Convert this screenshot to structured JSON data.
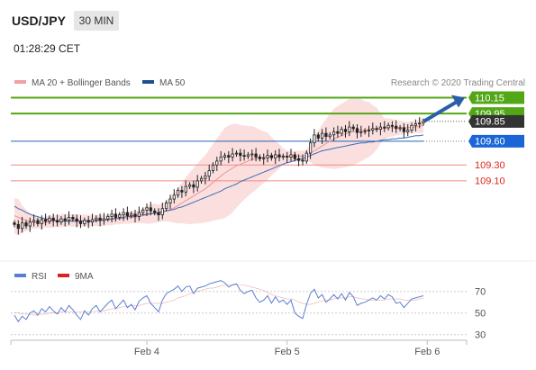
{
  "header": {
    "symbol": "USD/JPY",
    "timeframe": "30 MIN",
    "time": "01:28:29 CET"
  },
  "legend": {
    "ma20_label": "MA 20 + Bollinger Bands",
    "ma50_label": "MA 50",
    "credit": "Research © 2020 Trading Central"
  },
  "rsi_legend": {
    "rsi_label": "RSI",
    "ma_label": "9MA"
  },
  "colors": {
    "green": "#52a716",
    "blue": "#1f63b5",
    "red": "#e8423c",
    "dark": "#333333",
    "band": "#f7c4c4",
    "ma50": "#3d6fb5",
    "rsi": "#5b7fd0",
    "arrow": "#2a5ea8"
  },
  "chart_data": {
    "type": "candlestick",
    "x_ticks": [
      {
        "label": "Feb 4",
        "i": 34
      },
      {
        "label": "Feb 5",
        "i": 70
      },
      {
        "label": "Feb 6",
        "i": 106
      }
    ],
    "price_levels": [
      {
        "value": 110.15,
        "label": "110.15",
        "style": "resistance"
      },
      {
        "value": 109.95,
        "label": "109.95",
        "style": "resistance"
      },
      {
        "value": 109.85,
        "label": "109.85",
        "style": "last"
      },
      {
        "value": 109.6,
        "label": "109.60",
        "style": "pivot"
      },
      {
        "value": 109.3,
        "label": "109.30",
        "style": "support"
      },
      {
        "value": 109.1,
        "label": "109.10",
        "style": "support"
      }
    ],
    "price_range": [
      108.3,
      110.2
    ],
    "rsi_levels": [
      70,
      50,
      30
    ],
    "rsi_range": [
      20,
      80
    ],
    "close": [
      108.55,
      108.5,
      108.57,
      108.53,
      108.58,
      108.6,
      108.56,
      108.61,
      108.59,
      108.63,
      108.6,
      108.58,
      108.62,
      108.6,
      108.64,
      108.62,
      108.59,
      108.56,
      108.6,
      108.58,
      108.61,
      108.63,
      108.6,
      108.62,
      108.65,
      108.68,
      108.64,
      108.67,
      108.7,
      108.66,
      108.68,
      108.65,
      108.7,
      108.73,
      108.76,
      108.72,
      108.7,
      108.67,
      108.75,
      108.82,
      108.87,
      108.92,
      108.98,
      108.96,
      109.03,
      109.05,
      109.02,
      109.1,
      109.13,
      109.16,
      109.23,
      109.3,
      109.35,
      109.4,
      109.42,
      109.4,
      109.44,
      109.45,
      109.42,
      109.41,
      109.43,
      109.44,
      109.4,
      109.38,
      109.39,
      109.42,
      109.39,
      109.43,
      109.4,
      109.41,
      109.4,
      109.43,
      109.38,
      109.36,
      109.35,
      109.45,
      109.58,
      109.68,
      109.64,
      109.7,
      109.66,
      109.68,
      109.72,
      109.7,
      109.75,
      109.72,
      109.78,
      109.76,
      109.71,
      109.72,
      109.73,
      109.74,
      109.76,
      109.75,
      109.78,
      109.77,
      109.8,
      109.79,
      109.76,
      109.77,
      109.72,
      109.74,
      109.8,
      109.82,
      109.83,
      109.85
    ],
    "ma20": [
      108.66,
      108.64,
      108.62,
      108.6,
      108.59,
      108.58,
      108.57,
      108.57,
      108.58,
      108.58,
      108.59,
      108.59,
      108.6,
      108.6,
      108.6,
      108.6,
      108.6,
      108.6,
      108.6,
      108.6,
      108.6,
      108.6,
      108.6,
      108.6,
      108.61,
      108.61,
      108.62,
      108.62,
      108.63,
      108.63,
      108.64,
      108.64,
      108.65,
      108.66,
      108.67,
      108.68,
      108.69,
      108.69,
      108.7,
      108.72,
      108.74,
      108.76,
      108.79,
      108.82,
      108.85,
      108.88,
      108.91,
      108.94,
      108.97,
      109.0,
      109.04,
      109.08,
      109.12,
      109.16,
      109.2,
      109.23,
      109.26,
      109.29,
      109.31,
      109.33,
      109.35,
      109.37,
      109.38,
      109.39,
      109.4,
      109.41,
      109.41,
      109.41,
      109.41,
      109.41,
      109.41,
      109.41,
      109.41,
      109.41,
      109.41,
      109.42,
      109.45,
      109.48,
      109.51,
      109.54,
      109.57,
      109.6,
      109.63,
      109.65,
      109.67,
      109.69,
      109.71,
      109.72,
      109.73,
      109.74,
      109.74,
      109.75,
      109.75,
      109.76,
      109.76,
      109.76,
      109.77,
      109.77,
      109.77,
      109.77,
      109.77,
      109.77,
      109.78,
      109.78,
      109.79,
      109.8
    ],
    "ma50": [
      108.78,
      108.75,
      108.73,
      108.7,
      108.68,
      108.66,
      108.65,
      108.63,
      108.62,
      108.61,
      108.6,
      108.6,
      108.59,
      108.59,
      108.59,
      108.59,
      108.59,
      108.59,
      108.59,
      108.59,
      108.59,
      108.6,
      108.6,
      108.61,
      108.61,
      108.62,
      108.63,
      108.63,
      108.64,
      108.65,
      108.65,
      108.66,
      108.67,
      108.67,
      108.68,
      108.69,
      108.69,
      108.7,
      108.71,
      108.72,
      108.73,
      108.74,
      108.76,
      108.77,
      108.79,
      108.81,
      108.83,
      108.85,
      108.87,
      108.89,
      108.91,
      108.93,
      108.95,
      108.97,
      109.0,
      109.02,
      109.04,
      109.06,
      109.09,
      109.11,
      109.13,
      109.15,
      109.17,
      109.19,
      109.21,
      109.23,
      109.25,
      109.27,
      109.29,
      109.31,
      109.33,
      109.34,
      109.36,
      109.37,
      109.38,
      109.4,
      109.42,
      109.44,
      109.46,
      109.48,
      109.49,
      109.5,
      109.51,
      109.52,
      109.53,
      109.54,
      109.55,
      109.56,
      109.57,
      109.58,
      109.58,
      109.59,
      109.59,
      109.6,
      109.61,
      109.62,
      109.62,
      109.63,
      109.63,
      109.64,
      109.64,
      109.65,
      109.66,
      109.67,
      109.67,
      109.68
    ],
    "rsi": [
      48,
      42,
      47,
      44,
      50,
      52,
      48,
      54,
      51,
      56,
      52,
      49,
      55,
      51,
      57,
      53,
      48,
      44,
      52,
      48,
      54,
      57,
      51,
      55,
      59,
      62,
      54,
      58,
      62,
      55,
      58,
      53,
      61,
      64,
      66,
      59,
      55,
      51,
      62,
      68,
      70,
      72,
      75,
      70,
      74,
      75,
      68,
      73,
      74,
      75,
      77,
      78,
      79,
      80,
      78,
      74,
      76,
      77,
      71,
      68,
      70,
      71,
      64,
      60,
      62,
      66,
      59,
      65,
      60,
      62,
      58,
      62,
      50,
      47,
      45,
      58,
      68,
      72,
      64,
      67,
      60,
      63,
      67,
      63,
      68,
      62,
      69,
      65,
      57,
      59,
      60,
      62,
      64,
      62,
      66,
      63,
      67,
      65,
      59,
      60,
      55,
      59,
      63,
      64,
      65,
      66
    ],
    "rsi_ma": [
      50,
      50,
      49,
      49,
      49,
      48,
      48,
      49,
      49,
      50,
      50,
      50,
      51,
      51,
      51,
      51,
      51,
      51,
      51,
      51,
      51,
      52,
      52,
      52,
      53,
      54,
      54,
      55,
      56,
      56,
      57,
      57,
      57,
      58,
      59,
      59,
      59,
      59,
      59,
      60,
      61,
      62,
      64,
      65,
      66,
      68,
      69,
      70,
      71,
      72,
      73,
      73,
      74,
      75,
      76,
      76,
      76,
      76,
      76,
      76,
      75,
      74,
      73,
      72,
      71,
      69,
      67,
      66,
      65,
      64,
      63,
      63,
      62,
      60,
      59,
      58,
      58,
      59,
      60,
      61,
      62,
      62,
      63,
      64,
      64,
      64,
      65,
      65,
      64,
      63,
      63,
      62,
      62,
      62,
      62,
      62,
      63,
      63,
      63,
      63,
      62,
      62,
      62,
      62,
      63,
      64
    ]
  }
}
